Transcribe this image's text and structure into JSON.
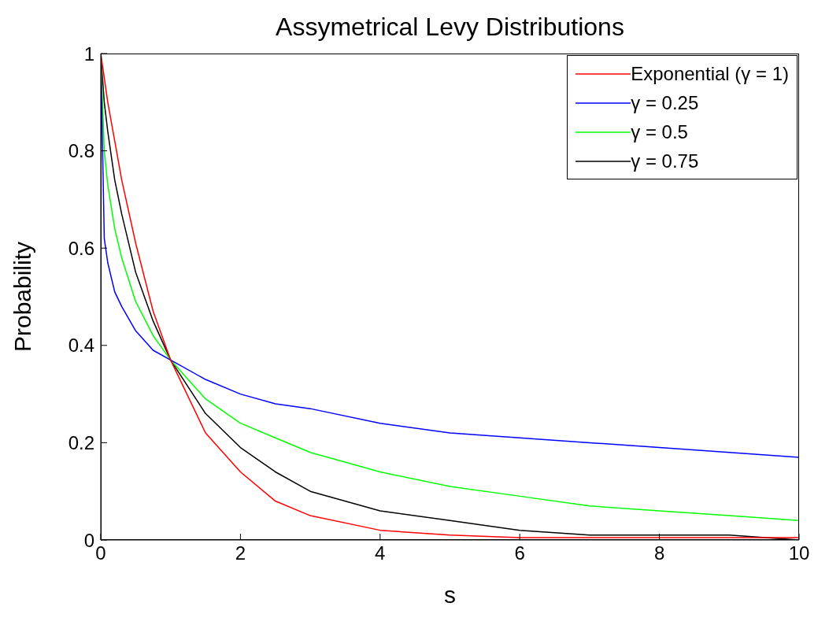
{
  "chart_data": {
    "type": "line",
    "title": "Assymetrical Levy Distributions",
    "xlabel": "s",
    "ylabel": "Probability",
    "x": [
      0,
      0.05,
      0.1,
      0.2,
      0.3,
      0.5,
      0.75,
      1,
      1.5,
      2,
      2.5,
      3,
      4,
      5,
      6,
      7,
      8,
      9,
      10
    ],
    "series": [
      {
        "name": "Exponential (γ = 1)",
        "color": "#ff0000",
        "values": [
          1,
          0.95,
          0.9,
          0.82,
          0.74,
          0.61,
          0.47,
          0.37,
          0.22,
          0.14,
          0.08,
          0.05,
          0.02,
          0.01,
          0.005,
          0.005,
          0.005,
          0.005,
          0.005
        ]
      },
      {
        "name": "γ = 0.25",
        "color": "#0000ff",
        "values": [
          1,
          0.62,
          0.57,
          0.51,
          0.48,
          0.43,
          0.39,
          0.37,
          0.33,
          0.3,
          0.28,
          0.27,
          0.24,
          0.22,
          0.21,
          0.2,
          0.19,
          0.18,
          0.17
        ]
      },
      {
        "name": "γ = 0.5",
        "color": "#00ff00",
        "values": [
          1,
          0.8,
          0.73,
          0.64,
          0.58,
          0.49,
          0.42,
          0.37,
          0.29,
          0.24,
          0.21,
          0.18,
          0.14,
          0.11,
          0.09,
          0.07,
          0.06,
          0.05,
          0.04
        ]
      },
      {
        "name": "γ = 0.75",
        "color": "#000000",
        "values": [
          1,
          0.9,
          0.84,
          0.74,
          0.67,
          0.55,
          0.45,
          0.37,
          0.26,
          0.19,
          0.14,
          0.1,
          0.06,
          0.04,
          0.02,
          0.01,
          0.01,
          0.01,
          0
        ]
      }
    ],
    "xlim": [
      0,
      10
    ],
    "xticks": [
      0,
      2,
      4,
      6,
      8,
      10
    ],
    "ylim": [
      0,
      1
    ],
    "yticks": [
      0,
      0.2,
      0.4,
      0.6,
      0.8,
      1
    ],
    "grid": false,
    "legend": "top right",
    "marker": "none",
    "line_style": "solid"
  }
}
